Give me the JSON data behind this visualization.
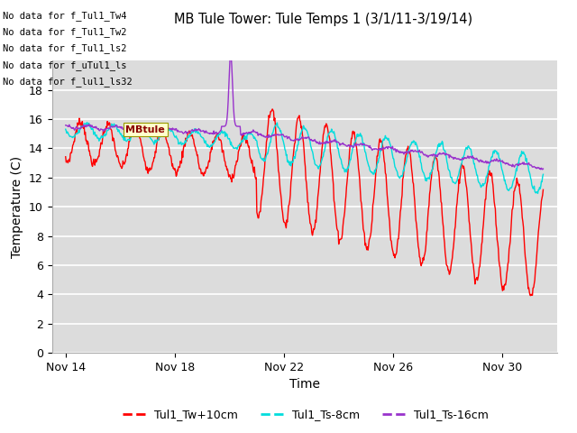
{
  "title": "MB Tule Tower: Tule Temps 1 (3/1/11-3/19/14)",
  "xlabel": "Time",
  "ylabel": "Temperature (C)",
  "ylim": [
    0,
    20
  ],
  "yticks": [
    0,
    2,
    4,
    6,
    8,
    10,
    12,
    14,
    16,
    18
  ],
  "bg_color": "#dcdcdc",
  "fig_bg": "#ffffff",
  "grid_color": "#ffffff",
  "annotations": [
    "No data for f_Tul1_Tw4",
    "No data for f_Tul1_Tw2",
    "No data for f_Tul1_ls2",
    "No data for f_uTul1_ls",
    "No data for f_lul1_ls32"
  ],
  "tooltip_text": "MBtule",
  "legend": [
    {
      "label": "Tul1_Tw+10cm",
      "color": "#ff0000"
    },
    {
      "label": "Tul1_Ts-8cm",
      "color": "#00dddd"
    },
    {
      "label": "Tul1_Ts-16cm",
      "color": "#9933cc"
    }
  ],
  "x_tick_labels": [
    "Nov 14",
    "Nov 18",
    "Nov 22",
    "Nov 26",
    "Nov 30"
  ],
  "x_tick_days": [
    14,
    18,
    22,
    26,
    30
  ],
  "xlim": [
    13.5,
    32
  ],
  "n_points": 800
}
